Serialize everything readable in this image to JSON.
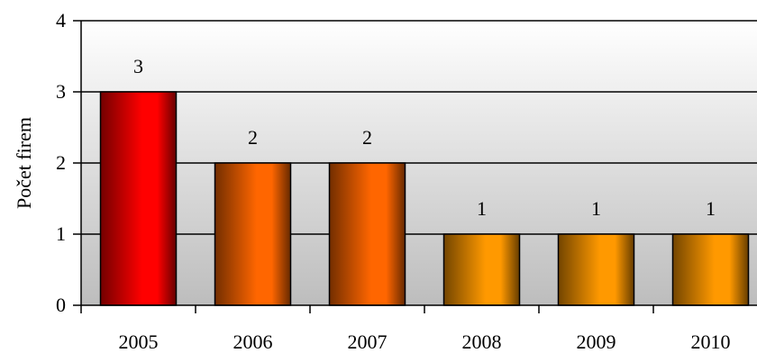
{
  "chart_data": {
    "type": "bar",
    "title": "",
    "xlabel": "",
    "ylabel": "Počet firem",
    "categories": [
      "2005",
      "2006",
      "2007",
      "2008",
      "2009",
      "2010"
    ],
    "values": [
      3,
      2,
      2,
      1,
      1,
      1
    ],
    "data_labels": [
      "3",
      "2",
      "2",
      "1",
      "1",
      "1"
    ],
    "ylim": [
      0,
      4
    ],
    "yticks": [
      0,
      1,
      2,
      3,
      4
    ],
    "ytick_labels": [
      "0",
      "1",
      "2",
      "3",
      "4"
    ],
    "grid": true,
    "legend": "none",
    "bar_colors": [
      "#ff0000",
      "#ff6600",
      "#ff6600",
      "#ff9900",
      "#ff9900",
      "#ff9900"
    ],
    "bar_edge_color": "#000000",
    "plot_background_top": "#ffffff",
    "plot_background_bottom": "#bdbdbd"
  }
}
